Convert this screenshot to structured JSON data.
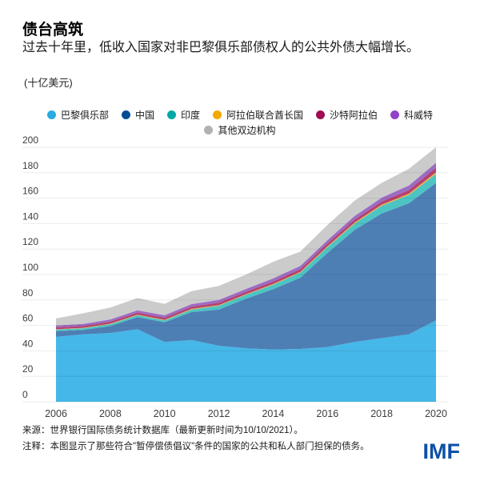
{
  "header": {
    "title": "债台高筑",
    "subtitle": "过去十年里，低收入国家对非巴黎俱乐部债权人的公共外债大幅增长。",
    "units": "(十亿美元)"
  },
  "chart_data": {
    "type": "area",
    "stacked": true,
    "title": "债台高筑",
    "ylabel": "十亿美元",
    "xlabel": "",
    "grid": true,
    "legend_position": "top",
    "ylim": [
      0,
      200
    ],
    "yticks": [
      0,
      20,
      40,
      60,
      80,
      100,
      120,
      140,
      160,
      180,
      200
    ],
    "xticks": [
      2006,
      2008,
      2010,
      2012,
      2014,
      2016,
      2018,
      2020
    ],
    "x": [
      2006,
      2007,
      2008,
      2009,
      2010,
      2011,
      2012,
      2013,
      2014,
      2015,
      2016,
      2017,
      2018,
      2019,
      2020
    ],
    "series": [
      {
        "key": "paris-club",
        "name": "巴黎俱乐部",
        "color": "#29abe2",
        "fill": "#45b7e8",
        "values": [
          51,
          53,
          54,
          57,
          47,
          48.5,
          44,
          42,
          41,
          41.5,
          43,
          47,
          50,
          53,
          64
        ]
      },
      {
        "key": "china",
        "name": "中国",
        "color": "#004c97",
        "fill": "#4d7fb5",
        "values": [
          4.5,
          3.5,
          5.5,
          9.5,
          15.5,
          22,
          28.5,
          39,
          47.5,
          56,
          74,
          88,
          98,
          103,
          108
        ]
      },
      {
        "key": "india",
        "name": "印度",
        "color": "#00a9a5",
        "fill": "#4cc4c4",
        "values": [
          1.2,
          1.3,
          1.5,
          1.5,
          1.5,
          2,
          3,
          3,
          3.5,
          4,
          4.5,
          5,
          6,
          6.5,
          7
        ]
      },
      {
        "key": "uae",
        "name": "阿拉伯联合酋长国",
        "color": "#f5a800",
        "fill": "#f2b13d",
        "values": [
          0.3,
          0.3,
          0.4,
          0.4,
          0.4,
          0.5,
          0.5,
          0.5,
          0.5,
          0.6,
          0.7,
          0.8,
          0.9,
          1,
          1.3
        ]
      },
      {
        "key": "saudi-arabia",
        "name": "沙特阿拉伯",
        "color": "#a10a54",
        "fill": "#b34372",
        "values": [
          1.5,
          1.5,
          1.6,
          1.7,
          1.7,
          1.8,
          1.9,
          2,
          2.1,
          2.2,
          2.3,
          2.4,
          2.5,
          3,
          3.8
        ]
      },
      {
        "key": "kuwait",
        "name": "科威特",
        "color": "#9143c8",
        "fill": "#9c6cc4",
        "values": [
          1.5,
          1.6,
          1.7,
          1.8,
          1.9,
          2,
          2.1,
          2.2,
          2.3,
          2.4,
          2.5,
          2.8,
          3,
          3.5,
          3.7
        ]
      },
      {
        "key": "other-bilateral",
        "name": "其他双边机构",
        "color": "#b1b1b1",
        "fill": "#cbcbcb",
        "values": [
          5.5,
          8.3,
          9.3,
          9.6,
          9,
          10.2,
          11,
          11.3,
          13.1,
          11.3,
          12,
          12,
          11.6,
          13,
          12.2
        ]
      }
    ]
  },
  "footer": {
    "source": "来源：世界银行国际债务统计数据库（最新更新时间为10/10/2021）。",
    "note": "注释：本图显示了那些符合\"暂停偿债倡议\"条件的国家的公共和私人部门担保的债务。",
    "logo": "IMF"
  },
  "colors": {
    "logo_blue": "#0d50a5",
    "grid_line": "rgba(0,0,0,0.08)",
    "tick_text": "#3d3d3d"
  }
}
